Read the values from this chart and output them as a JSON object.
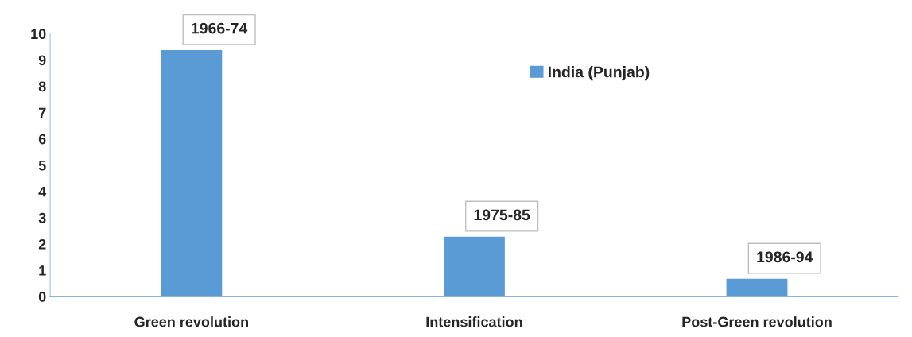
{
  "chart_data": {
    "type": "bar",
    "categories": [
      "Green revolution",
      "Intensification",
      "Post-Green revolution"
    ],
    "series": [
      {
        "name": "India (Punjab)",
        "color": "#5b9bd5",
        "values": [
          9.4,
          2.3,
          0.7
        ]
      }
    ],
    "ylim": [
      0,
      10
    ],
    "yticks": [
      0,
      1,
      2,
      3,
      4,
      5,
      6,
      7,
      8,
      9,
      10
    ],
    "grid": false,
    "legend": "top right",
    "annotations": [
      "1966-74",
      "1975-85",
      "1986-94"
    ]
  }
}
